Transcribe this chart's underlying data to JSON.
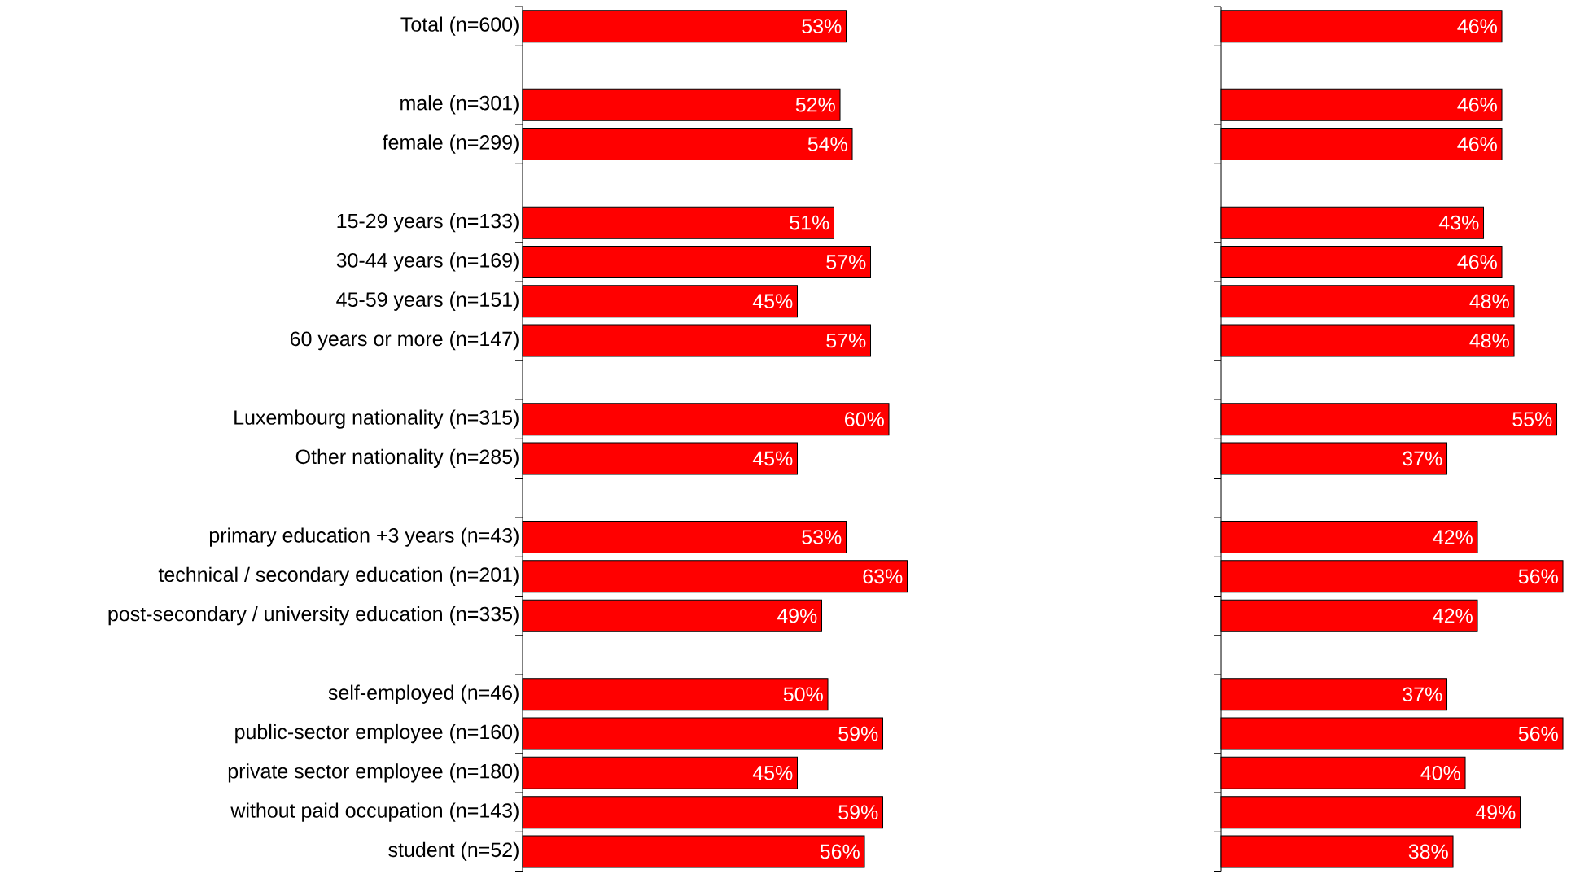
{
  "chart_data": [
    {
      "type": "bar",
      "orientation": "horizontal",
      "color": "#ff0000",
      "categories": [
        "Total (n=600)",
        null,
        "male (n=301)",
        "female (n=299)",
        null,
        "15-29 years (n=133)",
        "30-44 years (n=169)",
        "45-59 years (n=151)",
        "60 years or more (n=147)",
        null,
        "Luxembourg nationality (n=315)",
        "Other nationality (n=285)",
        null,
        "primary education +3 years (n=43)",
        "technical / secondary education  (n=201)",
        "post-secondary / university education (n=335)",
        null,
        "self-employed (n=46)",
        "public-sector employee (n=160)",
        "private sector employee (n=180)",
        "without paid occupation (n=143)",
        "student (n=52)"
      ],
      "values": [
        53,
        null,
        52,
        54,
        null,
        51,
        57,
        45,
        57,
        null,
        60,
        45,
        null,
        53,
        63,
        49,
        null,
        50,
        59,
        45,
        59,
        56
      ],
      "value_labels": [
        "53%",
        null,
        "52%",
        "54%",
        null,
        "51%",
        "57%",
        "45%",
        "57%",
        null,
        "60%",
        "45%",
        null,
        "53%",
        "63%",
        "49%",
        null,
        "50%",
        "59%",
        "45%",
        "59%",
        "56%"
      ]
    },
    {
      "type": "bar",
      "orientation": "horizontal",
      "color": "#ff0000",
      "categories": [
        null,
        null,
        null,
        null,
        null,
        null,
        null,
        null,
        null,
        null,
        null,
        null,
        null,
        null,
        null,
        null,
        null,
        null,
        null,
        null,
        null,
        null
      ],
      "values": [
        46,
        null,
        46,
        46,
        null,
        43,
        46,
        48,
        48,
        null,
        55,
        37,
        null,
        42,
        56,
        42,
        null,
        37,
        56,
        40,
        49,
        38
      ],
      "value_labels": [
        "46%",
        null,
        "46%",
        "46%",
        null,
        "43%",
        "46%",
        "48%",
        "48%",
        null,
        "55%",
        "37%",
        null,
        "42%",
        "56%",
        "42%",
        null,
        "37%",
        "56%",
        "40%",
        "49%",
        "38%"
      ]
    }
  ]
}
